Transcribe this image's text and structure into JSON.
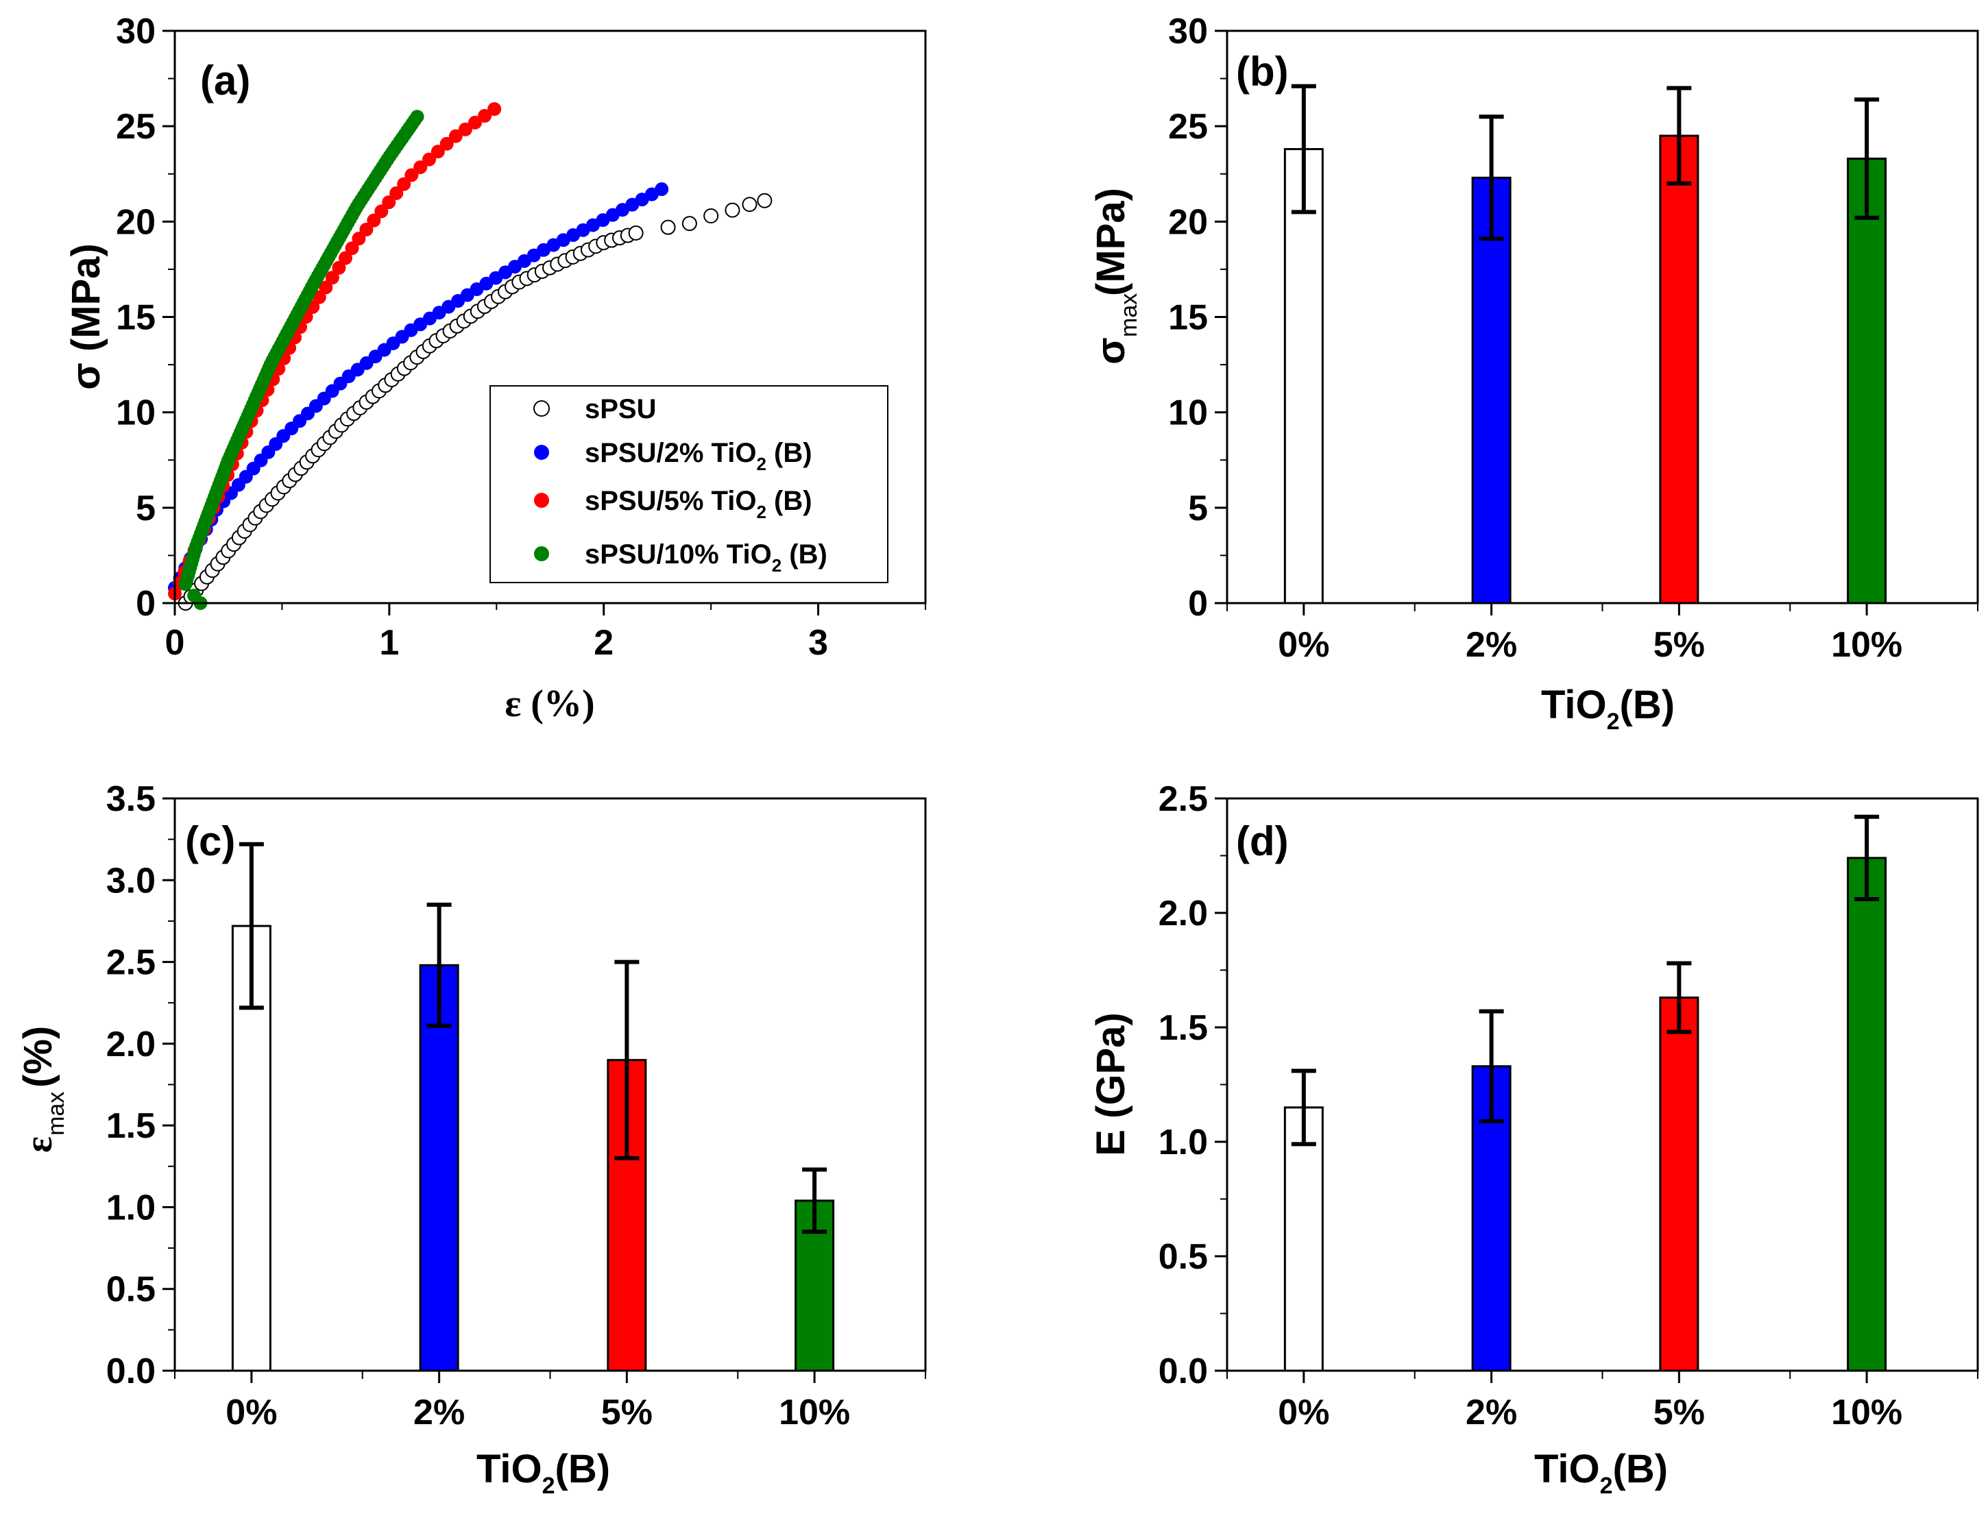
{
  "chart_data": [
    {
      "panel": "(a)",
      "type": "scatter",
      "xlabel": "ε (%)",
      "ylabel": "σ (MPa)",
      "xlim": [
        0,
        3.5
      ],
      "ylim": [
        0,
        30
      ],
      "xticks": [
        0,
        1,
        2,
        3
      ],
      "yticks": [
        0,
        5,
        10,
        15,
        20,
        25,
        30
      ],
      "legend_position": "center-right",
      "series": [
        {
          "name": "sPSU",
          "marker": "open-circle",
          "color": "#000000",
          "x": [
            0.05,
            0.4,
            0.8,
            1.2,
            1.6,
            2.0,
            2.15,
            2.3,
            2.5,
            2.75
          ],
          "y": [
            0.0,
            4.8,
            9.6,
            13.6,
            16.8,
            18.9,
            19.4,
            19.7,
            20.3,
            21.1
          ]
        },
        {
          "name": "sPSU/2% TiO₂ (B)",
          "marker": "filled-circle",
          "color": "#0000ff",
          "x": [
            0.0,
            0.2,
            0.5,
            0.8,
            1.1,
            1.4,
            1.7,
            2.0,
            2.27
          ],
          "y": [
            0.8,
            5.0,
            8.7,
            11.8,
            14.3,
            16.4,
            18.4,
            20.1,
            21.7
          ]
        },
        {
          "name": "sPSU/5% TiO₂ (B)",
          "marker": "filled-circle",
          "color": "#ff0000",
          "x": [
            0.0,
            0.15,
            0.35,
            0.6,
            0.85,
            1.1,
            1.3,
            1.49
          ],
          "y": [
            0.5,
            4.2,
            9.4,
            14.8,
            19.0,
            22.4,
            24.4,
            25.9
          ]
        },
        {
          "name": "sPSU/10% TiO₂ (B)",
          "marker": "filled-circle",
          "color": "#008000",
          "x": [
            0.12,
            0.05,
            0.1,
            0.25,
            0.45,
            0.65,
            0.85,
            1.0,
            1.13
          ],
          "y": [
            0.0,
            1.0,
            3.0,
            7.5,
            12.6,
            16.8,
            20.8,
            23.4,
            25.5
          ]
        }
      ]
    },
    {
      "panel": "(b)",
      "type": "bar",
      "categories": [
        "0%",
        "2%",
        "5%",
        "10%"
      ],
      "values": [
        23.8,
        22.3,
        24.5,
        23.3
      ],
      "errors": [
        3.3,
        3.2,
        2.5,
        3.1
      ],
      "colors": [
        "#ffffff",
        "#0000ff",
        "#ff0000",
        "#008000"
      ],
      "xlabel": "TiO₂(B)",
      "ylabel": "σmax(MPa)",
      "ylim": [
        0,
        30
      ],
      "yticks": [
        0,
        5,
        10,
        15,
        20,
        25,
        30
      ]
    },
    {
      "panel": "(c)",
      "type": "bar",
      "categories": [
        "0%",
        "2%",
        "5%",
        "10%"
      ],
      "values": [
        2.72,
        2.48,
        1.9,
        1.04
      ],
      "errors": [
        0.5,
        0.37,
        0.6,
        0.19
      ],
      "colors": [
        "#ffffff",
        "#0000ff",
        "#ff0000",
        "#008000"
      ],
      "xlabel": "TiO₂(B)",
      "ylabel": "εmax (%)",
      "ylim": [
        0,
        3.5
      ],
      "yticks": [
        "0.0",
        "0.5",
        "1.0",
        "1.5",
        "2.0",
        "2.5",
        "3.0",
        "3.5"
      ]
    },
    {
      "panel": "(d)",
      "type": "bar",
      "categories": [
        "0%",
        "2%",
        "5%",
        "10%"
      ],
      "values": [
        1.15,
        1.33,
        1.63,
        2.24
      ],
      "errors": [
        0.16,
        0.24,
        0.15,
        0.18
      ],
      "colors": [
        "#ffffff",
        "#0000ff",
        "#ff0000",
        "#008000"
      ],
      "xlabel": "TiO₂(B)",
      "ylabel": "E (GPa)",
      "ylim": [
        0,
        2.5
      ],
      "yticks": [
        "0.0",
        "0.5",
        "1.0",
        "1.5",
        "2.0",
        "2.5"
      ]
    }
  ]
}
